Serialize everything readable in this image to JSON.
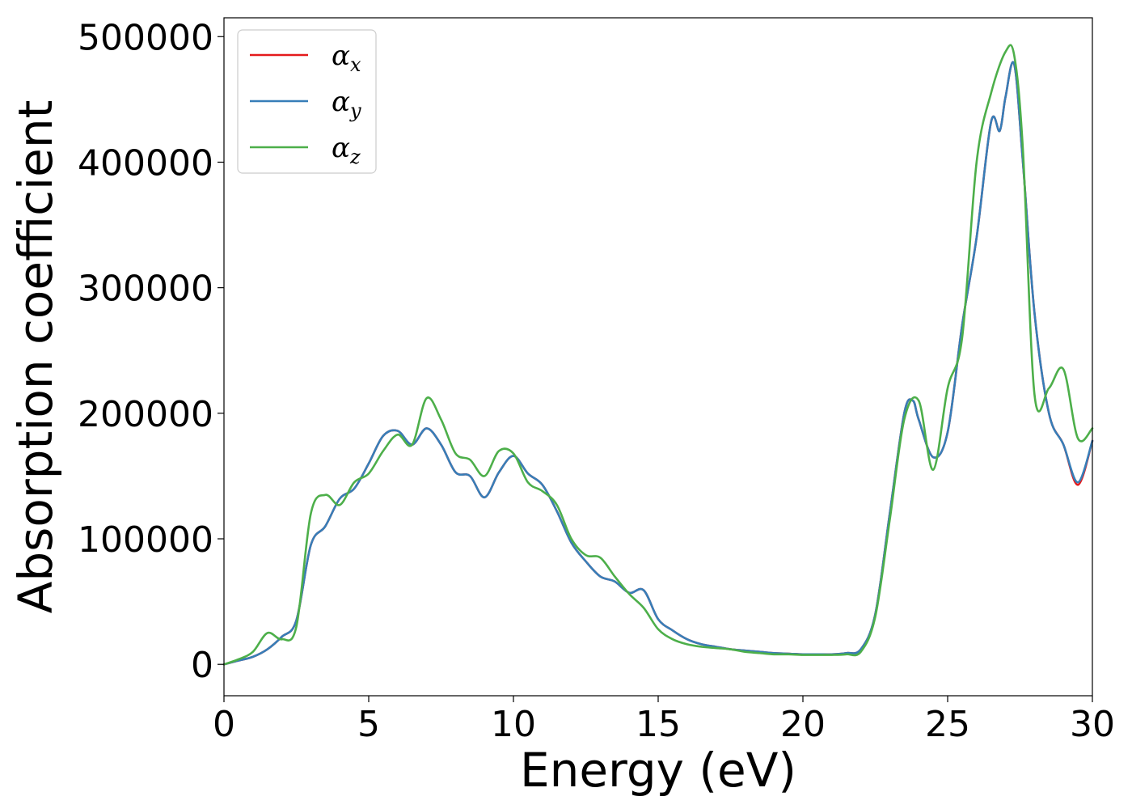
{
  "chart_data": {
    "type": "line",
    "title": "",
    "xlabel": "Energy (eV)",
    "ylabel": "Absorption coefficient",
    "xlim": [
      0,
      30
    ],
    "ylim": [
      -25000,
      515000
    ],
    "xticks": [
      0,
      5,
      10,
      15,
      20,
      25,
      30
    ],
    "xtick_labels": [
      "0",
      "5",
      "10",
      "15",
      "20",
      "25",
      "30"
    ],
    "yticks": [
      0,
      100000,
      200000,
      300000,
      400000,
      500000
    ],
    "ytick_labels": [
      "0",
      "100000",
      "200000",
      "300000",
      "400000",
      "500000"
    ],
    "grid": false,
    "legend_position": "top-left",
    "series": [
      {
        "name": "α_x",
        "symbol": "α",
        "subscript": "x",
        "color": "#e41a1c",
        "x": [
          0,
          0.5,
          1,
          1.5,
          2,
          2.5,
          3,
          3.5,
          4,
          4.5,
          5,
          5.5,
          6,
          6.5,
          7,
          7.5,
          8,
          8.5,
          9,
          9.5,
          10,
          10.5,
          11,
          11.5,
          12,
          12.5,
          13,
          13.5,
          14,
          14.5,
          15,
          15.5,
          16,
          16.5,
          17,
          17.5,
          18,
          18.5,
          19,
          19.5,
          20,
          20.5,
          21,
          21.5,
          22,
          22.5,
          23,
          23.5,
          23.8,
          24,
          24.5,
          25,
          25.5,
          26,
          26.5,
          26.8,
          27,
          27.3,
          27.6,
          28,
          28.5,
          29,
          29.5,
          30
        ],
        "y": [
          0,
          3000,
          6000,
          12000,
          22000,
          35000,
          95000,
          110000,
          132000,
          140000,
          160000,
          182000,
          186000,
          175000,
          188000,
          175000,
          153000,
          150000,
          133000,
          153000,
          166000,
          152000,
          143000,
          122000,
          97000,
          82000,
          70000,
          66000,
          57000,
          59000,
          36000,
          27000,
          20000,
          16000,
          14000,
          12000,
          11000,
          10000,
          9000,
          8500,
          8000,
          8000,
          8000,
          9000,
          12000,
          40000,
          120000,
          200000,
          210000,
          195000,
          165000,
          185000,
          270000,
          340000,
          432000,
          425000,
          452000,
          478000,
          400000,
          280000,
          200000,
          175000,
          143000,
          178000
        ]
      },
      {
        "name": "α_y",
        "symbol": "α",
        "subscript": "y",
        "color": "#377eb8",
        "x": [
          0,
          0.5,
          1,
          1.5,
          2,
          2.5,
          3,
          3.5,
          4,
          4.5,
          5,
          5.5,
          6,
          6.5,
          7,
          7.5,
          8,
          8.5,
          9,
          9.5,
          10,
          10.5,
          11,
          11.5,
          12,
          12.5,
          13,
          13.5,
          14,
          14.5,
          15,
          15.5,
          16,
          16.5,
          17,
          17.5,
          18,
          18.5,
          19,
          19.5,
          20,
          20.5,
          21,
          21.5,
          22,
          22.5,
          23,
          23.5,
          23.8,
          24,
          24.5,
          25,
          25.5,
          26,
          26.5,
          26.8,
          27,
          27.3,
          27.6,
          28,
          28.5,
          29,
          29.5,
          30
        ],
        "y": [
          0,
          3000,
          6000,
          12000,
          22000,
          35000,
          95000,
          110000,
          132000,
          140000,
          160000,
          182000,
          186000,
          175000,
          188000,
          175000,
          153000,
          150000,
          133000,
          153000,
          166000,
          152000,
          143000,
          122000,
          97000,
          82000,
          70000,
          66000,
          57000,
          59000,
          36000,
          27000,
          20000,
          16000,
          14000,
          12000,
          11000,
          10000,
          9000,
          8500,
          8000,
          8000,
          8000,
          9000,
          12000,
          40000,
          120000,
          200000,
          210000,
          195000,
          165000,
          185000,
          270000,
          340000,
          432000,
          425000,
          452000,
          478000,
          400000,
          280000,
          200000,
          175000,
          145000,
          178000
        ]
      },
      {
        "name": "α_z",
        "symbol": "α",
        "subscript": "z",
        "color": "#4daf4a",
        "x": [
          0,
          0.5,
          1,
          1.5,
          2,
          2.5,
          3,
          3.5,
          4,
          4.5,
          5,
          5.5,
          6,
          6.5,
          7,
          7.5,
          8,
          8.5,
          9,
          9.5,
          10,
          10.5,
          11,
          11.5,
          12,
          12.5,
          13,
          13.5,
          14,
          14.5,
          15,
          15.5,
          16,
          16.5,
          17,
          17.5,
          18,
          18.5,
          19,
          19.5,
          20,
          20.5,
          21,
          21.5,
          22,
          22.5,
          23,
          23.5,
          24,
          24.5,
          25,
          25.5,
          26,
          26.5,
          27,
          27.3,
          27.6,
          28,
          28.5,
          29,
          29.5,
          30
        ],
        "y": [
          0,
          4000,
          10000,
          25000,
          20000,
          30000,
          120000,
          135000,
          127000,
          145000,
          152000,
          170000,
          183000,
          175000,
          212000,
          195000,
          168000,
          163000,
          150000,
          170000,
          168000,
          145000,
          138000,
          127000,
          100000,
          87000,
          85000,
          70000,
          56000,
          45000,
          28000,
          20000,
          16000,
          14000,
          13000,
          12000,
          10000,
          9000,
          8000,
          8000,
          7500,
          7500,
          7500,
          8000,
          10000,
          38000,
          115000,
          195000,
          210000,
          155000,
          220000,
          260000,
          400000,
          455000,
          488000,
          485000,
          410000,
          215000,
          220000,
          235000,
          180000,
          188000
        ]
      }
    ]
  }
}
